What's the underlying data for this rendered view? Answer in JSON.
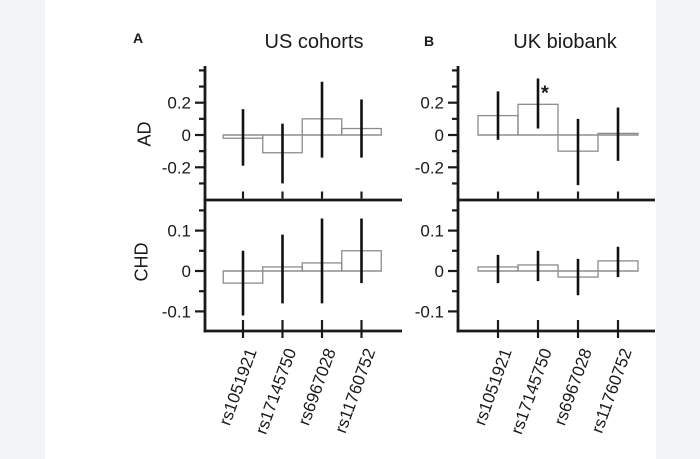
{
  "figure": {
    "panel_a_label": "A",
    "panel_b_label": "B",
    "column_titles": [
      "US cohorts",
      "UK biobank"
    ],
    "row_labels": [
      "AD",
      "CHD"
    ]
  },
  "colors": {
    "background_strip": "#f1f3f7",
    "canvas": "#ffffff",
    "axis": "#1a1a1a",
    "bar_outline": "#8c8c8c",
    "error_bar": "#111111",
    "text": "#1a1a1a"
  },
  "chart_data": {
    "type": "bar",
    "error_bars": true,
    "legend": false,
    "grid": false,
    "categories": [
      "rs1051921",
      "rs17145750",
      "rs6967028",
      "rs11760752"
    ],
    "panels": [
      {
        "column": "US cohorts",
        "row": "AD",
        "ylim": [
          -0.4,
          0.42
        ],
        "yticks": [
          0.2,
          0,
          -0.2
        ],
        "values": [
          -0.02,
          -0.11,
          0.1,
          0.04
        ],
        "ci_low": [
          -0.19,
          -0.3,
          -0.14,
          -0.14
        ],
        "ci_high": [
          0.16,
          0.07,
          0.33,
          0.22
        ],
        "significant": [],
        "sig_marker": "*"
      },
      {
        "column": "UK biobank",
        "row": "AD",
        "ylim": [
          -0.4,
          0.42
        ],
        "yticks": [
          0.2,
          0,
          -0.2
        ],
        "values": [
          0.12,
          0.19,
          -0.1,
          0.01
        ],
        "ci_low": [
          -0.03,
          0.04,
          -0.31,
          -0.16
        ],
        "ci_high": [
          0.27,
          0.35,
          0.1,
          0.17
        ],
        "significant": [
          1
        ],
        "sig_marker": "*"
      },
      {
        "column": "US cohorts",
        "row": "CHD",
        "ylim": [
          -0.15,
          0.17
        ],
        "yticks": [
          0.1,
          0,
          -0.1
        ],
        "values": [
          -0.03,
          0.01,
          0.02,
          0.05
        ],
        "ci_low": [
          -0.11,
          -0.08,
          -0.08,
          -0.03
        ],
        "ci_high": [
          0.05,
          0.09,
          0.13,
          0.13
        ],
        "significant": [],
        "sig_marker": "*"
      },
      {
        "column": "UK biobank",
        "row": "CHD",
        "ylim": [
          -0.15,
          0.17
        ],
        "yticks": [
          0.1,
          0,
          -0.1
        ],
        "values": [
          0.01,
          0.015,
          -0.015,
          0.025
        ],
        "ci_low": [
          -0.03,
          -0.025,
          -0.06,
          -0.015
        ],
        "ci_high": [
          0.04,
          0.05,
          0.03,
          0.06
        ],
        "significant": [],
        "sig_marker": "*"
      }
    ]
  }
}
